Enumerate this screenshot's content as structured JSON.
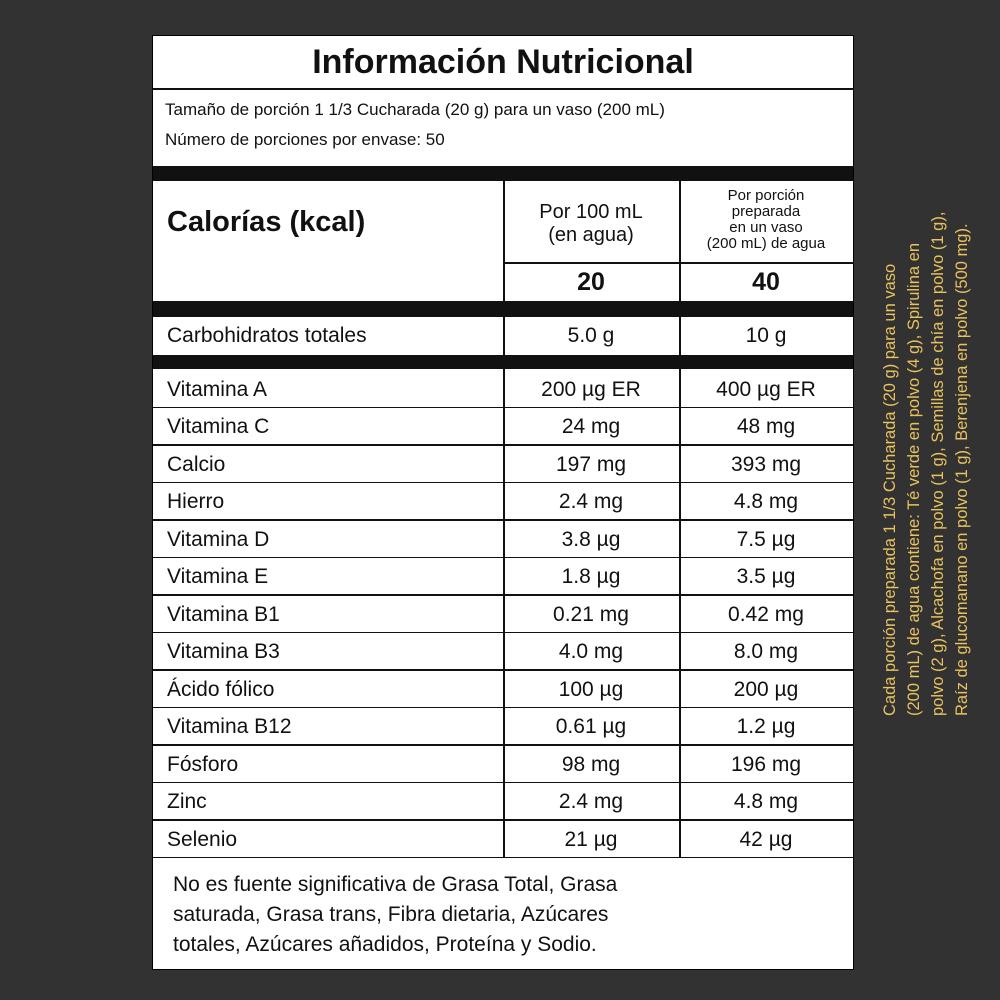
{
  "header": {
    "title": "Información Nutricional"
  },
  "serving": {
    "lines": [
      "Tamaño de porción 1 1/3 Cucharada (20 g) para un vaso (200 mL)",
      "Número de porciones por envase: 50"
    ]
  },
  "columns": {
    "label": "Calorías (kcal)",
    "col1": [
      "Por 100 mL",
      "(en agua)"
    ],
    "col2": [
      "Por porción",
      "preparada",
      "en un vaso",
      "(200 mL) de agua"
    ]
  },
  "calories": [
    "20",
    "40"
  ],
  "carbs": [
    "Carbohidratos totales",
    "5.0 g",
    "10 g"
  ],
  "rows": [
    [
      "Vitamina A",
      "200 µg ER",
      "400 µg ER"
    ],
    [
      "Vitamina C",
      "24 mg",
      "48 mg"
    ],
    [
      "Calcio",
      "197 mg",
      "393 mg"
    ],
    [
      "Hierro",
      "2.4 mg",
      "4.8 mg"
    ],
    [
      "Vitamina D",
      "3.8 µg",
      "7.5 µg"
    ],
    [
      "Vitamina E",
      "1.8 µg",
      "3.5 µg"
    ],
    [
      "Vitamina B1",
      "0.21 mg",
      "0.42 mg"
    ],
    [
      "Vitamina B3",
      "4.0 mg",
      "8.0 mg"
    ],
    [
      "Ácido fólico",
      "100 µg",
      "200 µg"
    ],
    [
      "Vitamina B12",
      "0.61 µg",
      "1.2 µg"
    ],
    [
      "Fósforo",
      "98 mg",
      "196 mg"
    ],
    [
      "Zinc",
      "2.4 mg",
      "4.8 mg"
    ],
    [
      "Selenio",
      "21 µg",
      "42 µg"
    ]
  ],
  "footer": {
    "lines": [
      "No es fuente significativa de Grasa Total, Grasa",
      "saturada, Grasa trans, Fibra dietaria, Azúcares",
      "totales,  Azúcares añadidos, Proteína y Sodio."
    ]
  },
  "side_note": {
    "lines": [
      "Cada porción preparada 1 1/3 Cucharada (20 g) para un vaso",
      "(200 mL) de agua contiene: Té verde en polvo (4 g), Spirulina en",
      "polvo (2 g), Alcachofa  en polvo (1 g), Semillas de chía en polvo (1 g),",
      "Raíz de glucomanano en polvo (1 g), Berenjena en polvo (500 mg)."
    ]
  }
}
